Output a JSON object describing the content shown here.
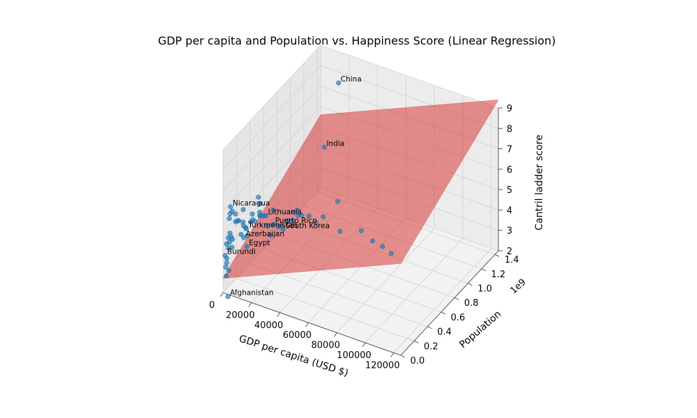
{
  "chart_data": {
    "type": "scatter",
    "title": "GDP per capita and Population vs. Happiness Score (Linear Regression)",
    "xlabel": "GDP per capita (USD $)",
    "ylabel": "Population",
    "zlabel": "Cantril ladder score",
    "y_offset_label": "1e9",
    "xlim": [
      0,
      125000
    ],
    "ylim": [
      0,
      1.45
    ],
    "zlim": [
      2,
      9
    ],
    "xticks": [
      0,
      20000,
      40000,
      60000,
      80000,
      100000,
      120000
    ],
    "xtick_labels": [
      "0",
      "20000",
      "40000",
      "60000",
      "80000",
      "100000",
      "120000"
    ],
    "yticks": [
      0.0,
      0.2,
      0.4,
      0.6,
      0.8,
      1.0,
      1.2,
      1.4
    ],
    "ytick_labels": [
      "0.0",
      "0.2",
      "0.4",
      "0.6",
      "0.8",
      "1.0",
      "1.2",
      "1.4"
    ],
    "zticks": [
      2,
      3,
      4,
      5,
      6,
      7,
      8,
      9
    ],
    "ztick_labels": [
      "2",
      "3",
      "4",
      "5",
      "6",
      "7",
      "8",
      "9"
    ],
    "grid": true,
    "colors": {
      "points": "#1f77b4",
      "plane": "#d62728",
      "pane": "#f2f2f2",
      "grid": "#d0d0d0"
    },
    "regression_plane": {
      "corners": [
        {
          "x": 0,
          "y": 0,
          "z": 2.7
        },
        {
          "x": 125000,
          "y": 0,
          "z": 6.5
        },
        {
          "x": 125000,
          "y": 1.45,
          "z": 9.4
        },
        {
          "x": 0,
          "y": 1.45,
          "z": 5.6
        }
      ]
    },
    "points": [
      {
        "x": 15000,
        "y": 1.4,
        "z": 7.7,
        "label": "China"
      },
      {
        "x": 6000,
        "y": 1.38,
        "z": 4.4,
        "label": "India"
      },
      {
        "x": 35000,
        "y": 0.003,
        "z": 6.2,
        "label": "Puerto Rico"
      },
      {
        "x": 30000,
        "y": 0.003,
        "z": 6.5,
        "label": "Lithuania"
      },
      {
        "x": 5000,
        "y": 0.007,
        "z": 6.3,
        "label": "Nicaragua"
      },
      {
        "x": 16000,
        "y": 0.006,
        "z": 5.5,
        "label": "Turkmenistan"
      },
      {
        "x": 40000,
        "y": 0.05,
        "z": 5.9,
        "label": "South Korea"
      },
      {
        "x": 14000,
        "y": 0.01,
        "z": 5.0,
        "label": "Azerbaijan"
      },
      {
        "x": 12000,
        "y": 0.1,
        "z": 4.2,
        "label": "Egypt"
      },
      {
        "x": 800,
        "y": 0.012,
        "z": 3.8,
        "label": "Burundi"
      },
      {
        "x": 1500,
        "y": 0.04,
        "z": 1.7,
        "label": "Afghanistan"
      },
      {
        "x": 3000,
        "y": 0.03,
        "z": 5.6
      },
      {
        "x": 4000,
        "y": 0.02,
        "z": 5.9
      },
      {
        "x": 6000,
        "y": 0.01,
        "z": 6.1
      },
      {
        "x": 8000,
        "y": 0.015,
        "z": 6.0
      },
      {
        "x": 10000,
        "y": 0.02,
        "z": 5.7
      },
      {
        "x": 2500,
        "y": 0.05,
        "z": 4.8
      },
      {
        "x": 2000,
        "y": 0.08,
        "z": 4.5
      },
      {
        "x": 1800,
        "y": 0.1,
        "z": 4.3
      },
      {
        "x": 3500,
        "y": 0.06,
        "z": 4.1
      },
      {
        "x": 1200,
        "y": 0.03,
        "z": 3.6
      },
      {
        "x": 900,
        "y": 0.02,
        "z": 3.2
      },
      {
        "x": 2200,
        "y": 0.04,
        "z": 3.0
      },
      {
        "x": 1600,
        "y": 0.015,
        "z": 2.8
      },
      {
        "x": 12000,
        "y": 0.05,
        "z": 5.4
      },
      {
        "x": 18000,
        "y": 0.03,
        "z": 5.8
      },
      {
        "x": 22000,
        "y": 0.01,
        "z": 6.0
      },
      {
        "x": 25000,
        "y": 0.02,
        "z": 6.3
      },
      {
        "x": 28000,
        "y": 0.01,
        "z": 6.4
      },
      {
        "x": 45000,
        "y": 0.01,
        "z": 6.6
      },
      {
        "x": 48000,
        "y": 0.03,
        "z": 7.0
      },
      {
        "x": 55000,
        "y": 0.01,
        "z": 7.1
      },
      {
        "x": 52000,
        "y": 0.006,
        "z": 7.3
      },
      {
        "x": 60000,
        "y": 0.01,
        "z": 7.2
      },
      {
        "x": 65000,
        "y": 0.006,
        "z": 7.0
      },
      {
        "x": 70000,
        "y": 0.01,
        "z": 7.4
      },
      {
        "x": 82000,
        "y": 0.006,
        "z": 7.0
      },
      {
        "x": 97000,
        "y": 0.005,
        "z": 7.4
      },
      {
        "x": 105000,
        "y": 0.004,
        "z": 7.1
      },
      {
        "x": 112000,
        "y": 0.003,
        "z": 7.0
      },
      {
        "x": 118000,
        "y": 0.006,
        "z": 6.8
      },
      {
        "x": 65000,
        "y": 0.33,
        "z": 6.9
      },
      {
        "x": 15000,
        "y": 0.21,
        "z": 6.3
      },
      {
        "x": 13000,
        "y": 0.27,
        "z": 5.3
      },
      {
        "x": 20000,
        "y": 0.13,
        "z": 6.4
      },
      {
        "x": 14000,
        "y": 0.14,
        "z": 5.7
      },
      {
        "x": 5000,
        "y": 0.23,
        "z": 4.5
      },
      {
        "x": 6000,
        "y": 0.17,
        "z": 5.0
      },
      {
        "x": 4500,
        "y": 0.12,
        "z": 5.2
      },
      {
        "x": 9000,
        "y": 0.11,
        "z": 5.9
      },
      {
        "x": 35000,
        "y": 0.08,
        "z": 5.8
      },
      {
        "x": 43000,
        "y": 0.125,
        "z": 6.1
      },
      {
        "x": 30000,
        "y": 0.07,
        "z": 5.3
      },
      {
        "x": 38000,
        "y": 0.06,
        "z": 6.0
      },
      {
        "x": 50000,
        "y": 0.06,
        "z": 6.8
      },
      {
        "x": 7000,
        "y": 0.04,
        "z": 5.5
      },
      {
        "x": 11000,
        "y": 0.035,
        "z": 5.0
      },
      {
        "x": 16000,
        "y": 0.02,
        "z": 5.1
      },
      {
        "x": 19000,
        "y": 0.04,
        "z": 5.9
      },
      {
        "x": 24000,
        "y": 0.05,
        "z": 6.2
      },
      {
        "x": 3000,
        "y": 0.015,
        "z": 4.7
      },
      {
        "x": 2000,
        "y": 0.01,
        "z": 4.4
      },
      {
        "x": 1000,
        "y": 0.06,
        "z": 4.0
      },
      {
        "x": 1400,
        "y": 0.025,
        "z": 3.4
      },
      {
        "x": 700,
        "y": 0.08,
        "z": 4.2
      },
      {
        "x": 33000,
        "y": 0.045,
        "z": 6.7
      },
      {
        "x": 27000,
        "y": 0.09,
        "z": 5.6
      }
    ]
  }
}
